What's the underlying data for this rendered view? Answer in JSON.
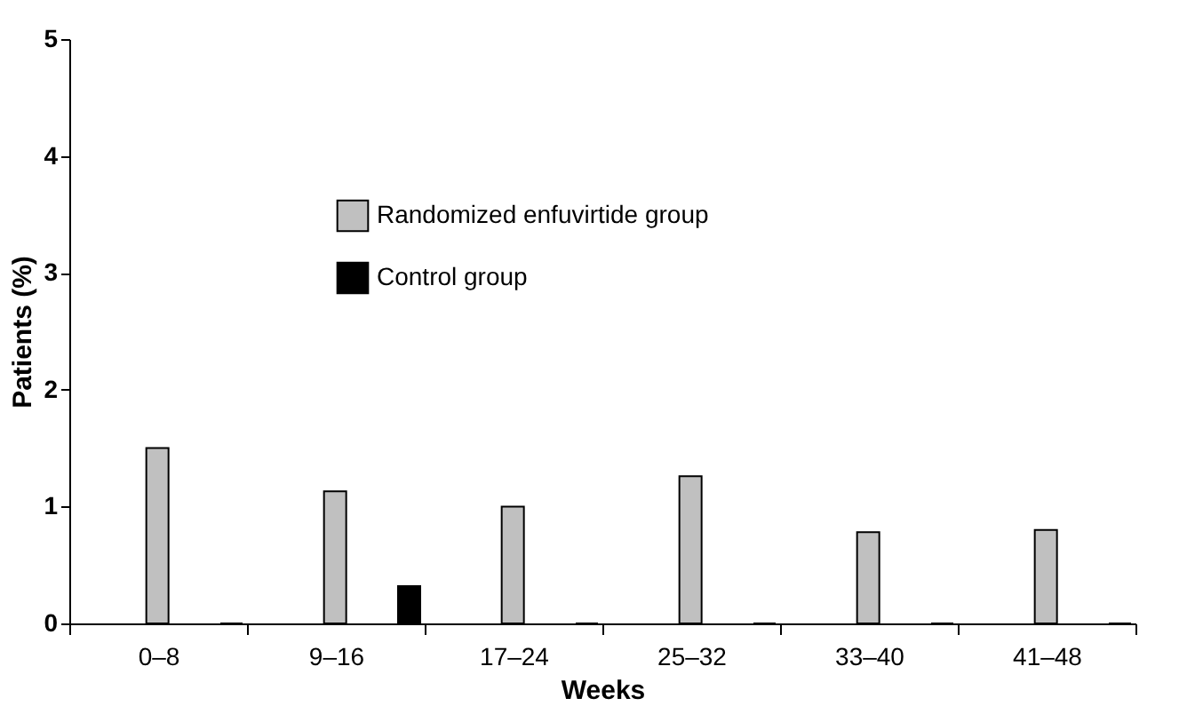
{
  "chart_data": {
    "type": "bar",
    "xlabel": "Weeks",
    "ylabel": "Patients (%)",
    "categories": [
      "0–8",
      "9–16",
      "17–24",
      "25–32",
      "33–40",
      "41–48"
    ],
    "series": [
      {
        "name": "Randomized enfuvirtide group",
        "color": "#c0c0c0",
        "values": [
          1.5,
          1.13,
          1.0,
          1.26,
          0.78,
          0.8
        ]
      },
      {
        "name": "Control group",
        "color": "#000000",
        "values": [
          0,
          0.32,
          0,
          0,
          0,
          0
        ]
      }
    ],
    "ylim": [
      0,
      5
    ],
    "yticks": [
      0,
      1,
      2,
      3,
      4,
      5
    ],
    "grid": false,
    "legend": "top left"
  }
}
